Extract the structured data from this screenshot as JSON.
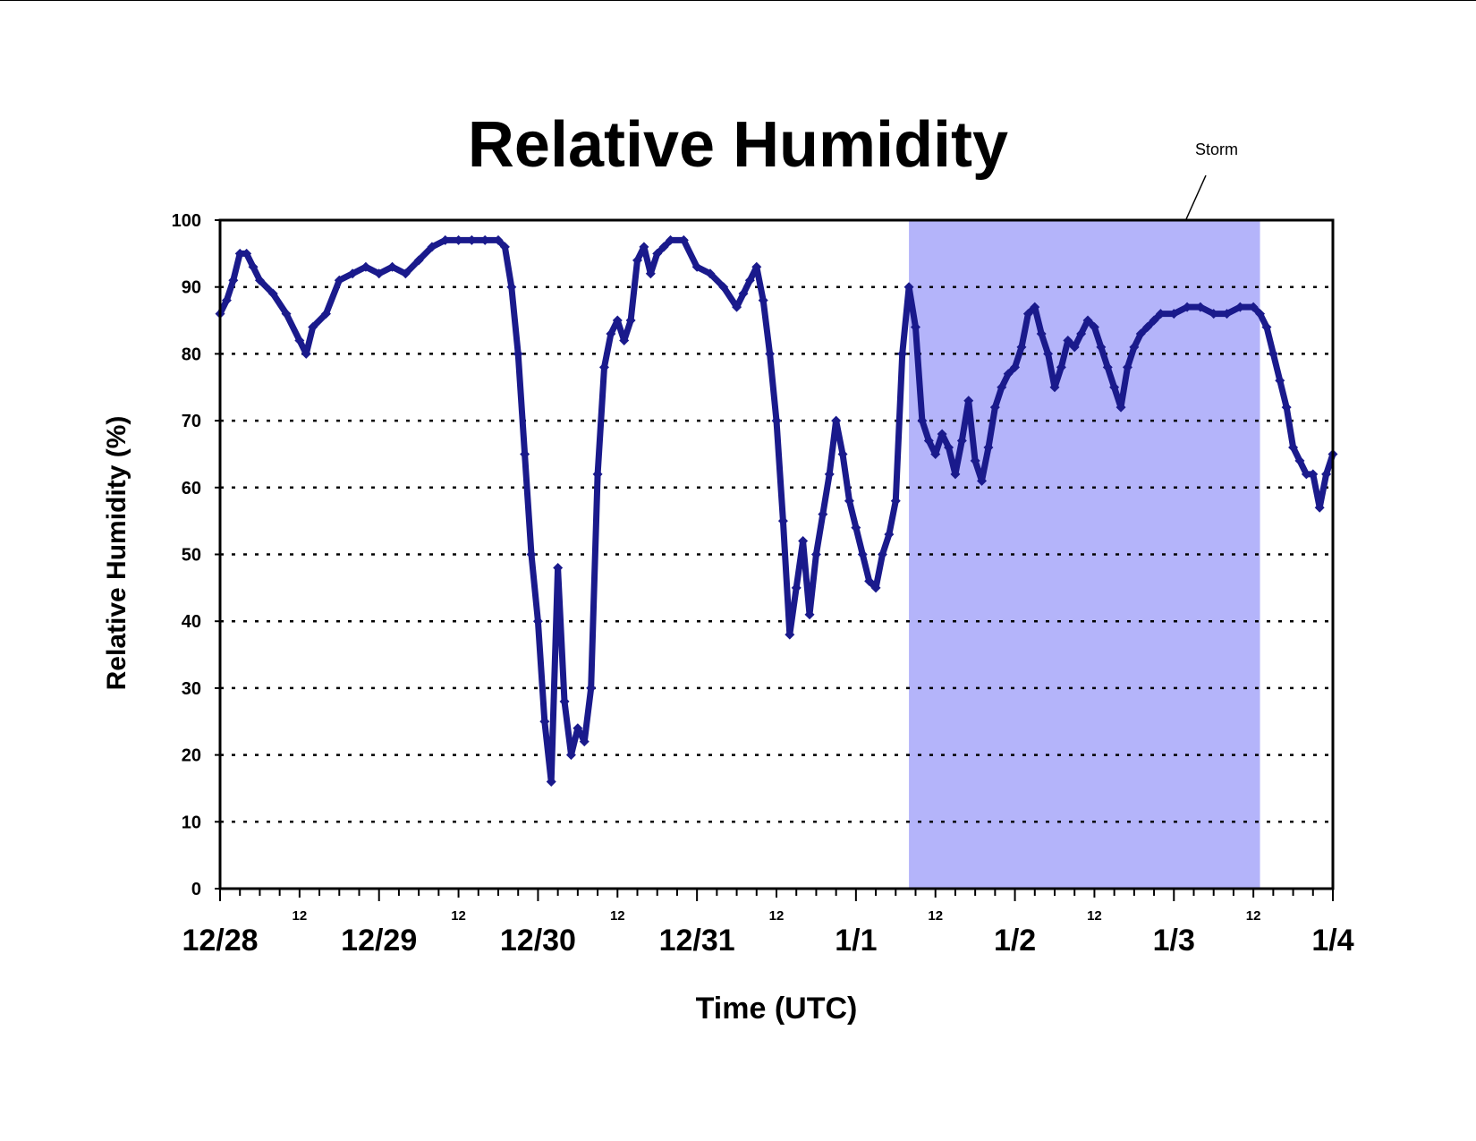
{
  "chart_data": {
    "type": "scatter",
    "title": "Relative Humidity",
    "xlabel": "Time (UTC)",
    "ylabel": "Relative Humidity (%)",
    "xlim": [
      "12/28 00:00",
      "1/4 00:00"
    ],
    "ylim": [
      0,
      100
    ],
    "y_ticks": [
      "0",
      "10",
      "20",
      "30",
      "40",
      "50",
      "60",
      "70",
      "80",
      "90",
      "100"
    ],
    "x_date_labels": [
      "12/28",
      "12/29",
      "12/30",
      "12/31",
      "1/1",
      "1/2",
      "1/3",
      "1/4"
    ],
    "x_hour_label": "12",
    "grid": "horizontal dotted",
    "marker": "diamond",
    "series_color": "#1a1a8c",
    "shade_color": "#b4b4fa",
    "annotation": {
      "text": "Storm",
      "span": [
        "1/1 08:00",
        "1/3 13:00"
      ]
    },
    "series": [
      {
        "points": [
          [
            "12/28 00:00",
            86
          ],
          [
            "12/28 01:00",
            88
          ],
          [
            "12/28 02:00",
            91
          ],
          [
            "12/28 03:00",
            95
          ],
          [
            "12/28 04:00",
            95
          ],
          [
            "12/28 05:00",
            93
          ],
          [
            "12/28 06:00",
            91
          ],
          [
            "12/28 08:00",
            89
          ],
          [
            "12/28 10:00",
            86
          ],
          [
            "12/28 12:00",
            82
          ],
          [
            "12/28 13:00",
            80
          ],
          [
            "12/28 14:00",
            84
          ],
          [
            "12/28 16:00",
            86
          ],
          [
            "12/28 18:00",
            91
          ],
          [
            "12/28 20:00",
            92
          ],
          [
            "12/28 22:00",
            93
          ],
          [
            "12/29 00:00",
            92
          ],
          [
            "12/29 02:00",
            93
          ],
          [
            "12/29 04:00",
            92
          ],
          [
            "12/29 06:00",
            94
          ],
          [
            "12/29 08:00",
            96
          ],
          [
            "12/29 10:00",
            97
          ],
          [
            "12/29 12:00",
            97
          ],
          [
            "12/29 14:00",
            97
          ],
          [
            "12/29 16:00",
            97
          ],
          [
            "12/29 18:00",
            97
          ],
          [
            "12/29 19:00",
            96
          ],
          [
            "12/29 20:00",
            90
          ],
          [
            "12/29 21:00",
            80
          ],
          [
            "12/29 22:00",
            65
          ],
          [
            "12/29 23:00",
            50
          ],
          [
            "12/30 00:00",
            40
          ],
          [
            "12/30 01:00",
            25
          ],
          [
            "12/30 02:00",
            16
          ],
          [
            "12/30 03:00",
            48
          ],
          [
            "12/30 04:00",
            28
          ],
          [
            "12/30 05:00",
            20
          ],
          [
            "12/30 06:00",
            24
          ],
          [
            "12/30 07:00",
            22
          ],
          [
            "12/30 08:00",
            30
          ],
          [
            "12/30 09:00",
            62
          ],
          [
            "12/30 10:00",
            78
          ],
          [
            "12/30 11:00",
            83
          ],
          [
            "12/30 12:00",
            85
          ],
          [
            "12/30 13:00",
            82
          ],
          [
            "12/30 14:00",
            85
          ],
          [
            "12/30 15:00",
            94
          ],
          [
            "12/30 16:00",
            96
          ],
          [
            "12/30 17:00",
            92
          ],
          [
            "12/30 18:00",
            95
          ],
          [
            "12/30 19:00",
            96
          ],
          [
            "12/30 20:00",
            97
          ],
          [
            "12/30 22:00",
            97
          ],
          [
            "12/31 00:00",
            93
          ],
          [
            "12/31 02:00",
            92
          ],
          [
            "12/31 04:00",
            90
          ],
          [
            "12/31 06:00",
            87
          ],
          [
            "12/31 07:00",
            89
          ],
          [
            "12/31 08:00",
            91
          ],
          [
            "12/31 09:00",
            93
          ],
          [
            "12/31 10:00",
            88
          ],
          [
            "12/31 11:00",
            80
          ],
          [
            "12/31 12:00",
            70
          ],
          [
            "12/31 13:00",
            55
          ],
          [
            "12/31 14:00",
            38
          ],
          [
            "12/31 15:00",
            45
          ],
          [
            "12/31 16:00",
            52
          ],
          [
            "12/31 17:00",
            41
          ],
          [
            "12/31 18:00",
            50
          ],
          [
            "12/31 19:00",
            56
          ],
          [
            "12/31 20:00",
            62
          ],
          [
            "12/31 21:00",
            70
          ],
          [
            "12/31 22:00",
            65
          ],
          [
            "12/31 23:00",
            58
          ],
          [
            "1/1 00:00",
            54
          ],
          [
            "1/1 01:00",
            50
          ],
          [
            "1/1 02:00",
            46
          ],
          [
            "1/1 03:00",
            45
          ],
          [
            "1/1 04:00",
            50
          ],
          [
            "1/1 05:00",
            53
          ],
          [
            "1/1 06:00",
            58
          ],
          [
            "1/1 07:00",
            80
          ],
          [
            "1/1 08:00",
            90
          ],
          [
            "1/1 09:00",
            84
          ],
          [
            "1/1 10:00",
            70
          ],
          [
            "1/1 11:00",
            67
          ],
          [
            "1/1 12:00",
            65
          ],
          [
            "1/1 13:00",
            68
          ],
          [
            "1/1 14:00",
            66
          ],
          [
            "1/1 15:00",
            62
          ],
          [
            "1/1 16:00",
            67
          ],
          [
            "1/1 17:00",
            73
          ],
          [
            "1/1 18:00",
            64
          ],
          [
            "1/1 19:00",
            61
          ],
          [
            "1/1 20:00",
            66
          ],
          [
            "1/1 21:00",
            72
          ],
          [
            "1/1 22:00",
            75
          ],
          [
            "1/1 23:00",
            77
          ],
          [
            "1/2 00:00",
            78
          ],
          [
            "1/2 01:00",
            81
          ],
          [
            "1/2 02:00",
            86
          ],
          [
            "1/2 03:00",
            87
          ],
          [
            "1/2 04:00",
            83
          ],
          [
            "1/2 05:00",
            80
          ],
          [
            "1/2 06:00",
            75
          ],
          [
            "1/2 07:00",
            78
          ],
          [
            "1/2 08:00",
            82
          ],
          [
            "1/2 09:00",
            81
          ],
          [
            "1/2 10:00",
            83
          ],
          [
            "1/2 11:00",
            85
          ],
          [
            "1/2 12:00",
            84
          ],
          [
            "1/2 13:00",
            81
          ],
          [
            "1/2 14:00",
            78
          ],
          [
            "1/2 15:00",
            75
          ],
          [
            "1/2 16:00",
            72
          ],
          [
            "1/2 17:00",
            78
          ],
          [
            "1/2 18:00",
            81
          ],
          [
            "1/2 19:00",
            83
          ],
          [
            "1/2 20:00",
            84
          ],
          [
            "1/2 21:00",
            85
          ],
          [
            "1/2 22:00",
            86
          ],
          [
            "1/3 00:00",
            86
          ],
          [
            "1/3 02:00",
            87
          ],
          [
            "1/3 04:00",
            87
          ],
          [
            "1/3 06:00",
            86
          ],
          [
            "1/3 08:00",
            86
          ],
          [
            "1/3 10:00",
            87
          ],
          [
            "1/3 12:00",
            87
          ],
          [
            "1/3 13:00",
            86
          ],
          [
            "1/3 14:00",
            84
          ],
          [
            "1/3 15:00",
            80
          ],
          [
            "1/3 16:00",
            76
          ],
          [
            "1/3 17:00",
            72
          ],
          [
            "1/3 18:00",
            66
          ],
          [
            "1/3 19:00",
            64
          ],
          [
            "1/3 20:00",
            62
          ],
          [
            "1/3 21:00",
            62
          ],
          [
            "1/3 22:00",
            57
          ],
          [
            "1/3 23:00",
            62
          ],
          [
            "1/4 00:00",
            65
          ]
        ]
      }
    ]
  }
}
